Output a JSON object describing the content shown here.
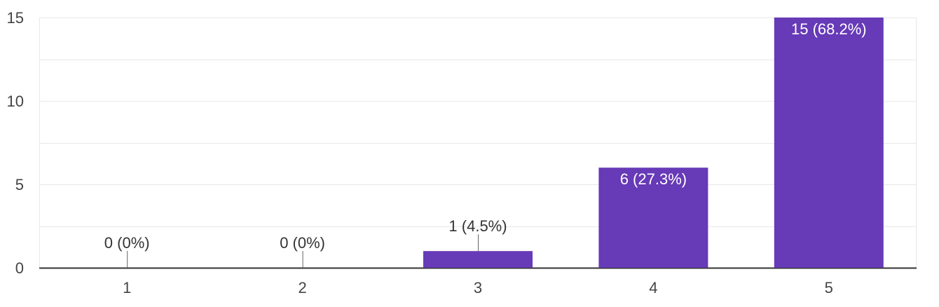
{
  "chart_data": {
    "type": "bar",
    "categories": [
      "1",
      "2",
      "3",
      "4",
      "5"
    ],
    "values": [
      0,
      0,
      1,
      6,
      15
    ],
    "data_labels": [
      "0 (0%)",
      "0 (0%)",
      "1 (4.5%)",
      "6 (27.3%)",
      "15 (68.2%)"
    ],
    "title": "",
    "xlabel": "",
    "ylabel": "",
    "ylim": [
      0,
      15
    ],
    "y_ticks": [
      0,
      5,
      10,
      15
    ],
    "grid": true,
    "legend": "none",
    "colors": {
      "bar": "#673ab7",
      "grid": "#e8e8e8",
      "axis": "#333333",
      "label_outside": "#333333",
      "label_inside": "#ffffff"
    }
  }
}
